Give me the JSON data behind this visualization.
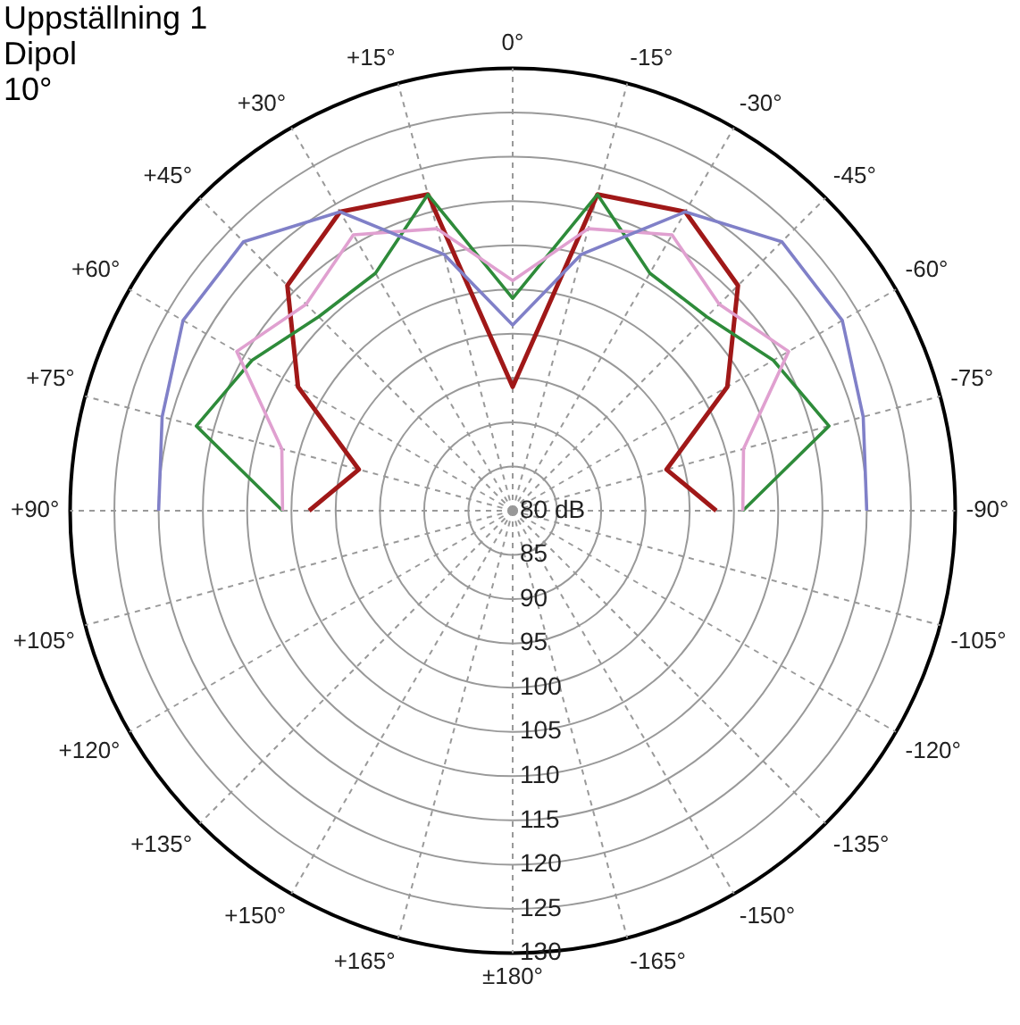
{
  "chart_data": {
    "type": "radar",
    "title": "Uppställning 1",
    "subtitle": "Dipol",
    "annotations": [
      "10°"
    ],
    "categories": [
      "0°",
      "-15°",
      "-30°",
      "-45°",
      "-60°",
      "-75°",
      "-90°",
      "-105°",
      "-120°",
      "-135°",
      "-150°",
      "-165°",
      "±180°",
      "+165°",
      "+150°",
      "+135°",
      "+120°",
      "+105°",
      "+90°",
      "+75°",
      "+60°",
      "+45°",
      "+30°",
      "+15°"
    ],
    "series": [
      {
        "color": "#8080c8",
        "values": [
          101,
          110,
          119,
          123,
          123,
          121,
          120,
          null,
          null,
          null,
          null,
          null,
          null,
          null,
          null,
          null,
          null,
          null,
          120,
          121,
          123,
          123,
          119,
          110
        ]
      },
      {
        "color": "#e0a0d0",
        "values": [
          106,
          113,
          116,
          113,
          116,
          107,
          106,
          null,
          null,
          null,
          null,
          null,
          null,
          null,
          null,
          null,
          null,
          null,
          106,
          107,
          116,
          113,
          116,
          113
        ]
      },
      {
        "color": "#2e8b3a",
        "values": [
          104,
          117,
          111,
          111,
          114,
          117,
          106,
          null,
          null,
          null,
          null,
          null,
          null,
          null,
          null,
          null,
          null,
          null,
          106,
          117,
          114,
          111,
          111,
          117
        ]
      },
      {
        "color": "#a01818",
        "values": [
          94,
          117,
          119,
          116,
          108,
          98,
          103,
          null,
          null,
          null,
          null,
          null,
          null,
          null,
          null,
          null,
          null,
          null,
          103,
          98,
          108,
          116,
          119,
          117
        ]
      }
    ],
    "ylim": [
      80,
      130
    ],
    "yticks": [
      {
        "value": 80,
        "label": "80 dB"
      },
      85,
      90,
      95,
      100,
      105,
      110,
      115,
      120,
      125,
      130
    ],
    "grid": true,
    "legend": false,
    "marker": "none",
    "line_style": "solid"
  }
}
